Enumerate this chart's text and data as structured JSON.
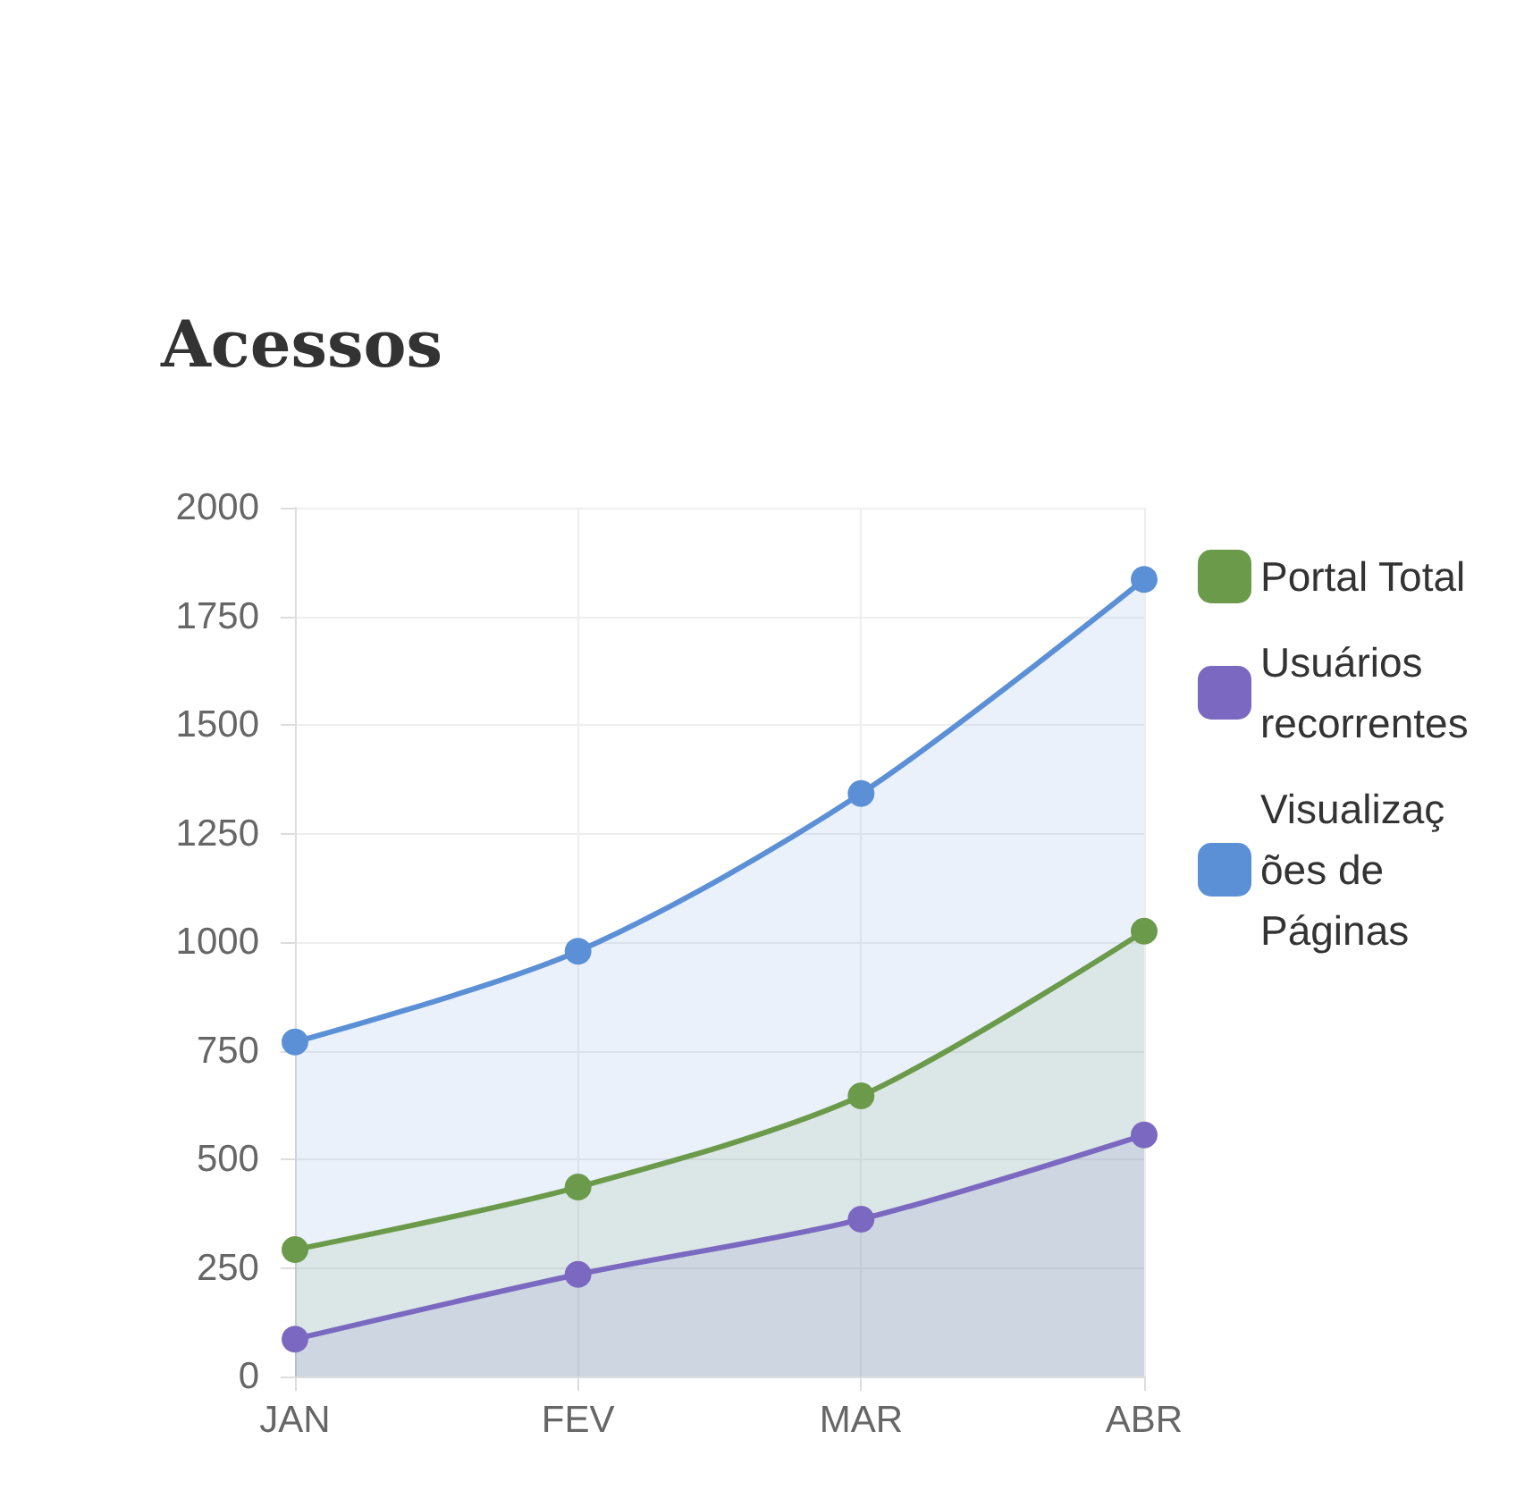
{
  "chart_data": {
    "type": "area",
    "title": "Acessos",
    "categories": [
      "JAN",
      "FEV",
      "MAR",
      "ABR"
    ],
    "series": [
      {
        "name": "Portal Total",
        "color": "#6a9a4a",
        "values": [
          292,
          436,
          646,
          1025
        ]
      },
      {
        "name": "Usuários recorrentes",
        "color": "#7b68c0",
        "values": [
          86,
          235,
          362,
          556
        ]
      },
      {
        "name": "Visualizações de Páginas",
        "color": "#5b8fd6",
        "values": [
          770,
          979,
          1342,
          1835
        ]
      }
    ],
    "ylim": [
      0,
      2000
    ],
    "yticks": [
      0,
      250,
      500,
      750,
      1000,
      1250,
      1500,
      1750,
      2000
    ],
    "grid": true,
    "legend": "right",
    "marker": "circle"
  }
}
